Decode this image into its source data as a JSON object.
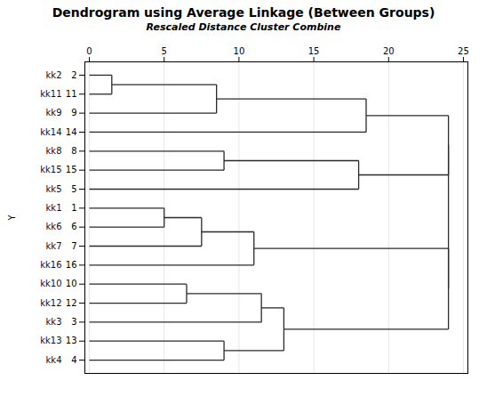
{
  "chart_data": {
    "type": "dendrogram",
    "title": "Dendrogram using Average Linkage (Between Groups)",
    "subtitle": "Rescaled Distance Cluster Combine",
    "ylabel": "Y",
    "color": "#2a2a2a",
    "xlim": [
      -0.3,
      25.3
    ],
    "xticks": [
      0,
      5,
      10,
      15,
      20,
      25
    ],
    "ylim": [
      0.3,
      16.7
    ],
    "grid": true,
    "categories": [
      2,
      11,
      9,
      14,
      8,
      15,
      5,
      1,
      6,
      7,
      16,
      10,
      12,
      3,
      13,
      4
    ],
    "leaf_labels": [
      "kk2",
      "kk11",
      "kk9",
      "kk14",
      "kk8",
      "kk15",
      "kk5",
      "kk1",
      "kk6",
      "kk7",
      "kk16",
      "kk10",
      "kk12",
      "kk3",
      "kk13",
      "kk4"
    ],
    "merges": [
      {
        "leaves": [
          2,
          11
        ],
        "x": 1.5
      },
      {
        "leaves": [
          2,
          11,
          9
        ],
        "x": 8.5
      },
      {
        "leaves": [
          2,
          11,
          9,
          14
        ],
        "x": 18.5
      },
      {
        "leaves": [
          8,
          15
        ],
        "x": 9.0
      },
      {
        "leaves": [
          8,
          15,
          5
        ],
        "x": 18.0
      },
      {
        "leaves": [
          2,
          11,
          9,
          14,
          8,
          15,
          5
        ],
        "x": 24.0
      },
      {
        "leaves": [
          1,
          6
        ],
        "x": 5.0
      },
      {
        "leaves": [
          1,
          6,
          7
        ],
        "x": 7.5
      },
      {
        "leaves": [
          1,
          6,
          7,
          16
        ],
        "x": 11.0
      },
      {
        "leaves": [
          10,
          12
        ],
        "x": 6.5
      },
      {
        "leaves": [
          10,
          12,
          3
        ],
        "x": 11.5
      },
      {
        "leaves": [
          13,
          4
        ],
        "x": 9.0
      },
      {
        "leaves": [
          10,
          12,
          3,
          13,
          4
        ],
        "x": 13.0
      },
      {
        "leaves": [
          1,
          6,
          7,
          16,
          10,
          12,
          3,
          13,
          4
        ],
        "x": 24.0
      },
      {
        "leaves": [
          2,
          11,
          9,
          14,
          8,
          15,
          5,
          1,
          6,
          7,
          16,
          10,
          12,
          3,
          13,
          4
        ],
        "x": 24.0
      }
    ]
  }
}
